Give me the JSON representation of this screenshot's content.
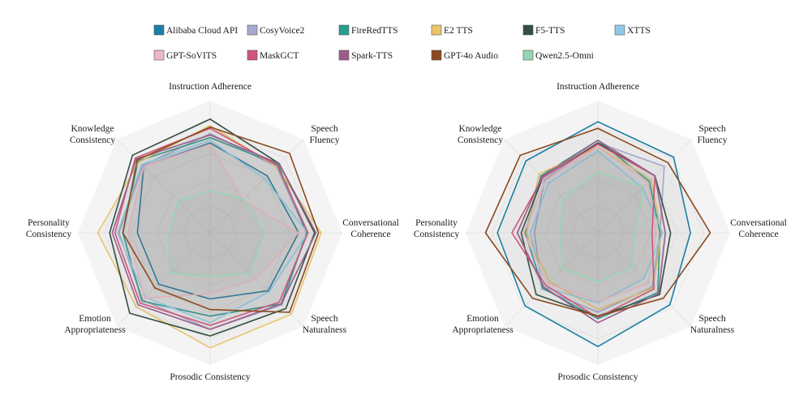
{
  "chart_data": [
    {
      "type": "radar",
      "axes": [
        "Instruction Adherence",
        "Speech Fluency",
        "Conversational Coherence",
        "Speech Naturalness",
        "Prosodic Consistency",
        "Emotion Appropriateness",
        "Personality Consistency",
        "Knowledge Consistency"
      ],
      "range": [
        0,
        1
      ],
      "series": [
        {
          "name": "Alibaba Cloud API",
          "color": "#1a7fa7",
          "values": [
            0.68,
            0.61,
            0.67,
            0.62,
            0.5,
            0.55,
            0.55,
            0.71
          ]
        },
        {
          "name": "CosyVoice2",
          "color": "#a9a9d0",
          "values": [
            0.75,
            0.71,
            0.73,
            0.77,
            0.73,
            0.72,
            0.69,
            0.72
          ]
        },
        {
          "name": "FireRedTTS",
          "color": "#2a9d8f",
          "values": [
            0.72,
            0.73,
            0.73,
            0.76,
            0.63,
            0.73,
            0.66,
            0.77
          ]
        },
        {
          "name": "E2 TTS",
          "color": "#e9c46a",
          "values": [
            0.81,
            0.71,
            0.84,
            0.87,
            0.87,
            0.79,
            0.85,
            0.76
          ]
        },
        {
          "name": "F5-TTS",
          "color": "#344e41",
          "values": [
            0.86,
            0.74,
            0.79,
            0.81,
            0.78,
            0.86,
            0.76,
            0.83
          ]
        },
        {
          "name": "XTTS",
          "color": "#8ecae6",
          "values": [
            0.7,
            0.58,
            0.74,
            0.63,
            0.68,
            0.69,
            0.7,
            0.73
          ]
        },
        {
          "name": "GPT-SoVITS",
          "color": "#eab8c1",
          "values": [
            0.67,
            0.35,
            0.67,
            0.49,
            0.46,
            0.7,
            0.62,
            0.71
          ]
        },
        {
          "name": "MaskGCT",
          "color": "#d1557a",
          "values": [
            0.79,
            0.72,
            0.74,
            0.74,
            0.7,
            0.75,
            0.72,
            0.8
          ]
        },
        {
          "name": "Spark-TTS",
          "color": "#9c5d8c",
          "values": [
            0.74,
            0.74,
            0.8,
            0.76,
            0.73,
            0.77,
            0.74,
            0.79
          ]
        },
        {
          "name": "GPT-4o Audio",
          "color": "#8b4a1e",
          "values": [
            0.8,
            0.85,
            0.82,
            0.85,
            0.58,
            0.59,
            0.66,
            0.78
          ]
        },
        {
          "name": "Qwen2.5-Omni",
          "color": "#95d5b2",
          "values": [
            0.32,
            0.36,
            0.41,
            0.43,
            0.33,
            0.43,
            0.31,
            0.34
          ]
        }
      ]
    },
    {
      "type": "radar",
      "axes": [
        "Instruction Adherence",
        "Speech Fluency",
        "Conversational Coherence",
        "Speech Naturalness",
        "Prosodic Consistency",
        "Emotion Appropriateness",
        "Personality Consistency",
        "Knowledge Consistency"
      ],
      "range": [
        0,
        1
      ],
      "series": [
        {
          "name": "Alibaba Cloud API",
          "color": "#1a7fa7",
          "values": [
            0.84,
            0.81,
            0.7,
            0.77,
            0.86,
            0.78,
            0.76,
            0.77
          ]
        },
        {
          "name": "CosyVoice2",
          "color": "#a9a9d0",
          "values": [
            0.68,
            0.71,
            0.47,
            0.58,
            0.6,
            0.6,
            0.48,
            0.57
          ]
        },
        {
          "name": "FireRedTTS",
          "color": "#2a9d8f",
          "values": [
            0.7,
            0.55,
            0.47,
            0.64,
            0.65,
            0.59,
            0.55,
            0.61
          ]
        },
        {
          "name": "E2 TTS",
          "color": "#e9c46a",
          "values": [
            0.65,
            0.57,
            0.48,
            0.59,
            0.58,
            0.52,
            0.54,
            0.63
          ]
        },
        {
          "name": "F5-TTS",
          "color": "#344e41",
          "values": [
            0.68,
            0.61,
            0.55,
            0.66,
            0.63,
            0.66,
            0.58,
            0.59
          ]
        },
        {
          "name": "XTTS",
          "color": "#8ecae6",
          "values": [
            0.62,
            0.48,
            0.49,
            0.49,
            0.53,
            0.58,
            0.51,
            0.53
          ]
        },
        {
          "name": "GPT-SoVITS",
          "color": "#eab8c1",
          "values": [
            0.65,
            0.54,
            0.44,
            0.54,
            0.52,
            0.54,
            0.56,
            0.56
          ]
        },
        {
          "name": "MaskGCT",
          "color": "#d1557a",
          "values": [
            0.67,
            0.61,
            0.41,
            0.6,
            0.64,
            0.56,
            0.65,
            0.59
          ]
        },
        {
          "name": "Spark-TTS",
          "color": "#9c5d8c",
          "values": [
            0.7,
            0.61,
            0.51,
            0.65,
            0.68,
            0.58,
            0.61,
            0.6
          ]
        },
        {
          "name": "GPT-4o Audio",
          "color": "#8b4a1e",
          "values": [
            0.79,
            0.75,
            0.85,
            0.7,
            0.63,
            0.7,
            0.85,
            0.83
          ]
        },
        {
          "name": "Qwen2.5-Omni",
          "color": "#95d5b2",
          "values": [
            0.46,
            0.49,
            0.28,
            0.37,
            0.37,
            0.38,
            0.29,
            0.37
          ]
        }
      ]
    }
  ]
}
